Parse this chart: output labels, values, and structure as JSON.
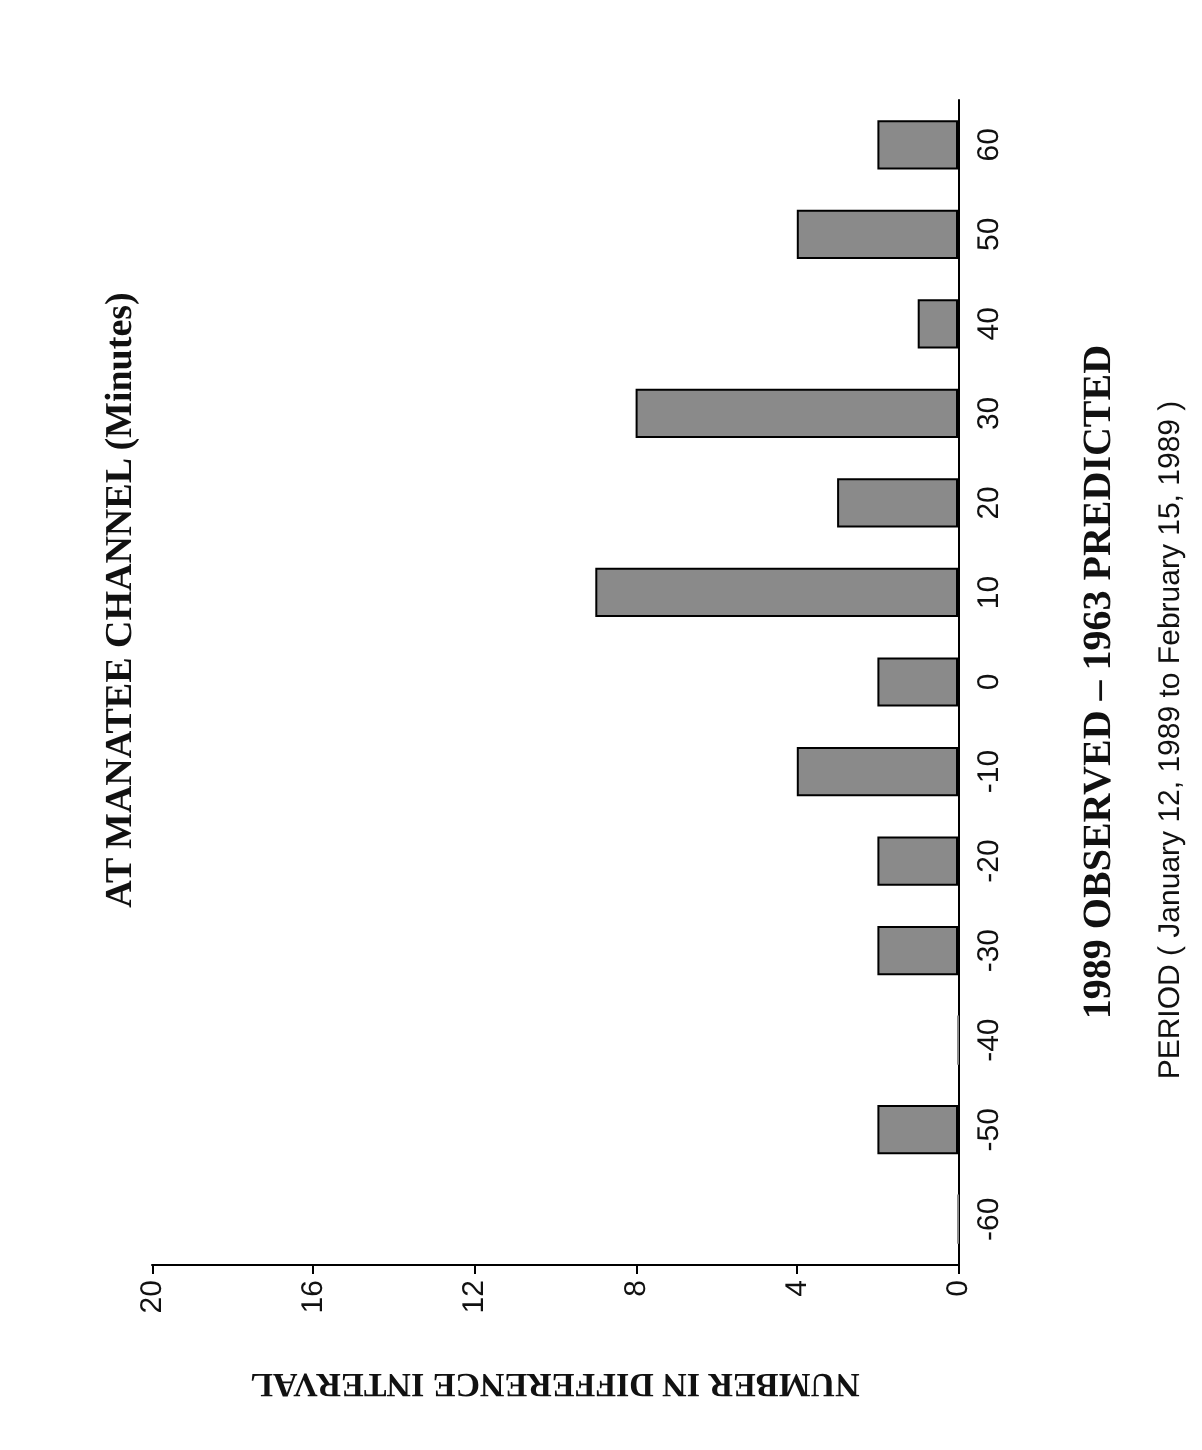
{
  "chart_data": {
    "type": "bar",
    "orientation": "horizontal",
    "title": "AT MANATEE CHANNEL (Minutes)",
    "ylabel": "1989 OBSERVED – 1963 PREDICTED",
    "xlabel": "NUMBER IN DIFFERENCE INTERVAL",
    "annotations": [
      "PERIOD ( January 12, 1989 to February 15, 1989 )"
    ],
    "categories": [
      "60",
      "50",
      "40",
      "30",
      "20",
      "10",
      "0",
      "-10",
      "-20",
      "-30",
      "-40",
      "-50",
      "-60"
    ],
    "values": [
      2,
      4,
      1,
      8,
      3,
      9,
      2,
      4,
      2,
      2,
      0,
      2,
      0
    ],
    "color": "#8a8a8a",
    "xlim": [
      20,
      0
    ],
    "xticks": [
      20,
      16,
      12,
      8,
      4,
      0
    ],
    "grid": false
  }
}
